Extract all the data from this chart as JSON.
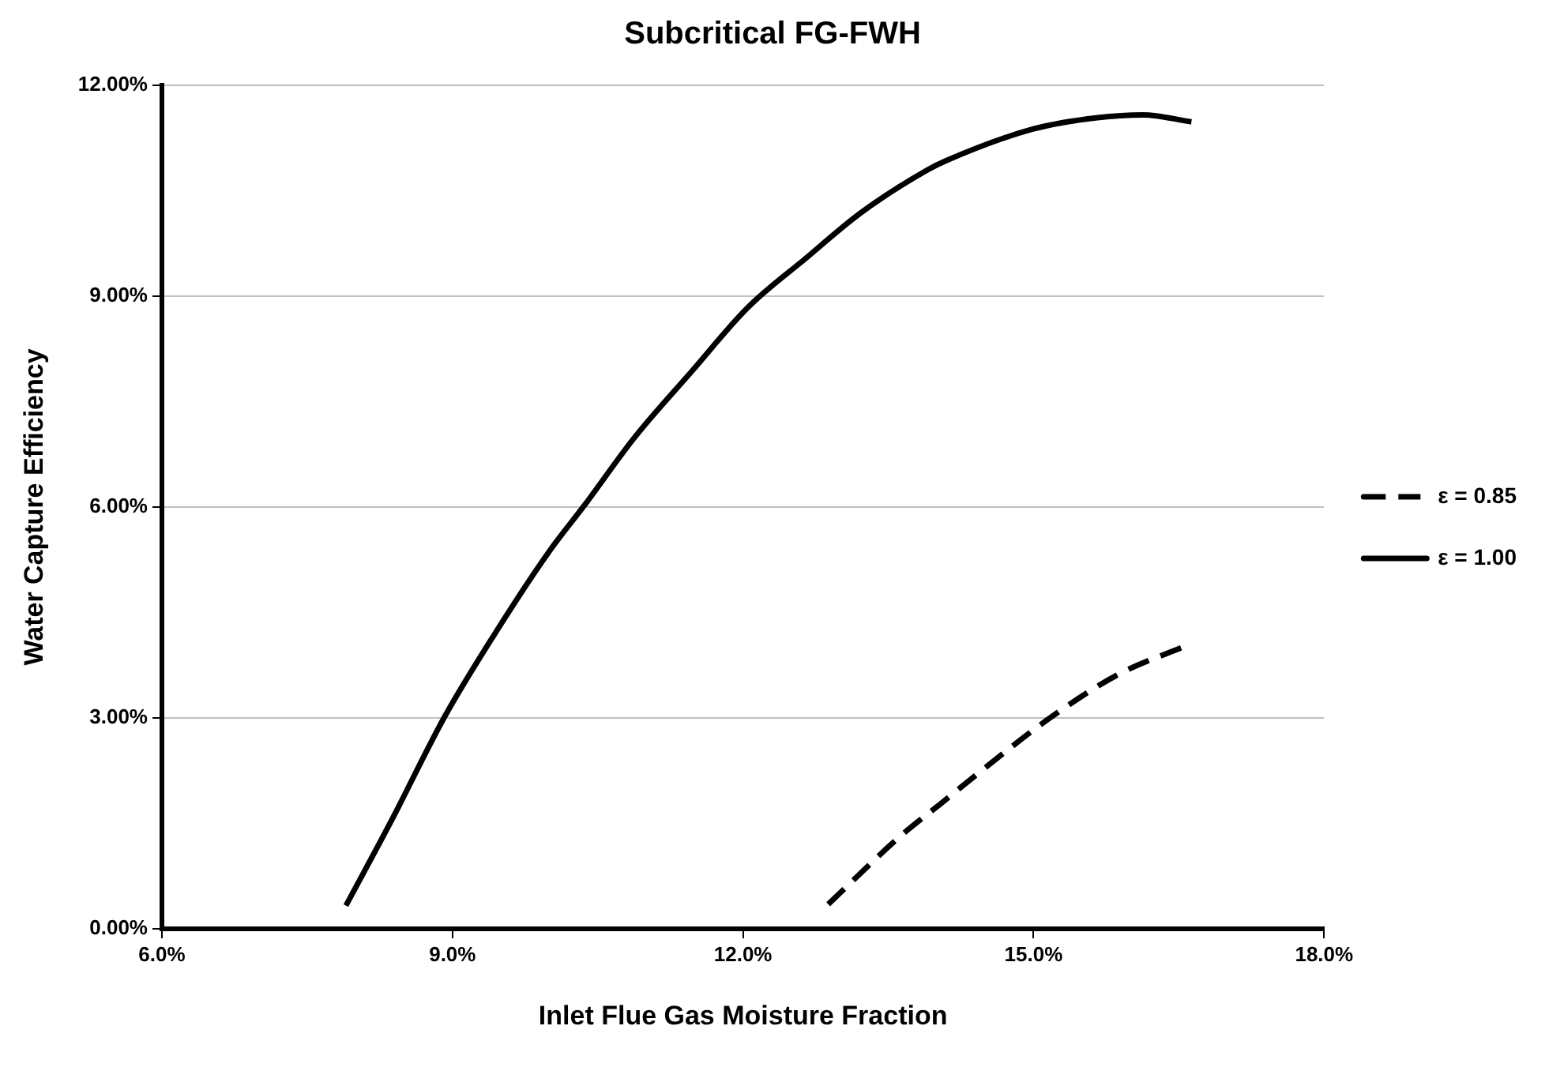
{
  "chart_data": {
    "type": "line",
    "title": "Subcritical FG-FWH",
    "xlabel": "Inlet Flue Gas Moisture Fraction",
    "ylabel": "Water Capture Efficiency",
    "xlim": [
      6,
      18
    ],
    "xticks": [
      {
        "value": 6,
        "label": "6.0%"
      },
      {
        "value": 9,
        "label": "9.0%"
      },
      {
        "value": 12,
        "label": "12.0%"
      },
      {
        "value": 15,
        "label": "15.0%"
      },
      {
        "value": 18,
        "label": "18.0%"
      }
    ],
    "ylim": [
      0,
      12
    ],
    "yticks": [
      {
        "value": 0,
        "label": "0.00%"
      },
      {
        "value": 3,
        "label": "3.00%"
      },
      {
        "value": 6,
        "label": "6.00%"
      },
      {
        "value": 9,
        "label": "9.00%"
      },
      {
        "value": 12,
        "label": "12.00%"
      }
    ],
    "grid": "y",
    "legend": "right",
    "marker": "none",
    "series": [
      {
        "name": "ε = 0.85",
        "color": "#000000",
        "line_style": "dashed",
        "x": [
          12.88,
          13.61,
          14.05,
          14.49,
          15.19,
          15.89,
          16.6
        ],
        "values": [
          0.35,
          1.3,
          1.79,
          2.28,
          3.02,
          3.63,
          4.04
        ]
      },
      {
        "name": "ε = 1.00",
        "color": "#000000",
        "line_style": "solid",
        "x": [
          7.9,
          8.37,
          8.92,
          9.42,
          10.01,
          10.36,
          10.88,
          11.47,
          12.05,
          12.64,
          13.22,
          13.91,
          14.1,
          15.0,
          15.66,
          16.13,
          16.63
        ],
        "values": [
          0.33,
          1.54,
          3.02,
          4.16,
          5.39,
          6.02,
          6.99,
          7.93,
          8.84,
          9.53,
          10.19,
          10.8,
          10.93,
          11.38,
          11.54,
          11.58,
          11.48
        ]
      }
    ]
  }
}
